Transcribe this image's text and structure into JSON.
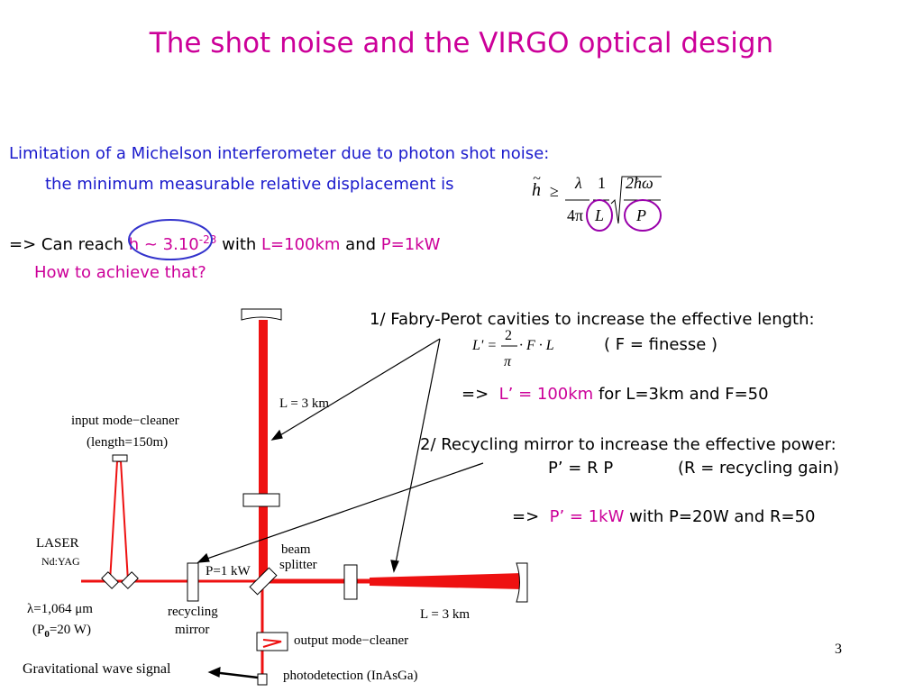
{
  "slide": {
    "title": "The shot noise and the VIRGO optical design",
    "page_number": "3"
  },
  "intro": {
    "line1": "Limitation of a Michelson interferometer due to photon shot noise:",
    "line2": "the minimum measurable relative displacement is",
    "reach_prefix": "=> Can reach ",
    "reach_h": "h ~ 3.10",
    "reach_exp": "-23",
    "reach_with": " with ",
    "reach_L": "L=100km",
    "reach_and": " and ",
    "reach_P": "P=1kW",
    "question": "How to achieve that?"
  },
  "formula_h": {
    "lhs": "h",
    "tilde": "~",
    "geq": "≥",
    "num1": "λ",
    "den1": "4π",
    "num2": "1",
    "den2": "L",
    "num3": "2ħω",
    "den3": "P"
  },
  "point1": {
    "heading": "1/ Fabry-Perot cavities to increase the effective length:",
    "formula_lhs": "L' =",
    "formula_num": "2",
    "formula_den": "π",
    "formula_rhs": "· F · L",
    "finesse": "( F = finesse )",
    "arrow": "=>",
    "result_mag": "L’ = 100km",
    "result_rest": " for L=3km and F=50"
  },
  "point2": {
    "heading": "2/ Recycling mirror to increase the effective power:",
    "relation": "P’ = R P",
    "gain": "(R = recycling gain)",
    "arrow": "=>",
    "result_mag": "P’ = 1kW",
    "result_rest": " with P=20W and R=50"
  },
  "diagram": {
    "input_mc_1": "input mode−cleaner",
    "input_mc_2": "(length=150m)",
    "laser": "LASER",
    "laser_type": "Nd:YAG",
    "wavelength": "λ=1,064 μm",
    "p0_open": "(P",
    "p0_sub": "0",
    "p0_rest": "=20 W)",
    "recycling_1": "recycling",
    "recycling_2": "mirror",
    "p_1kw": "P=1 kW",
    "beam_1": "beam",
    "beam_2": "splitter",
    "arm_north": "L = 3 km",
    "arm_east": "L = 3 km",
    "output_mc": "output mode−cleaner",
    "photodet": "photodetection (InAsGa)",
    "gw_signal": "Gravitational wave signal",
    "beam_color": "#ff0000"
  }
}
